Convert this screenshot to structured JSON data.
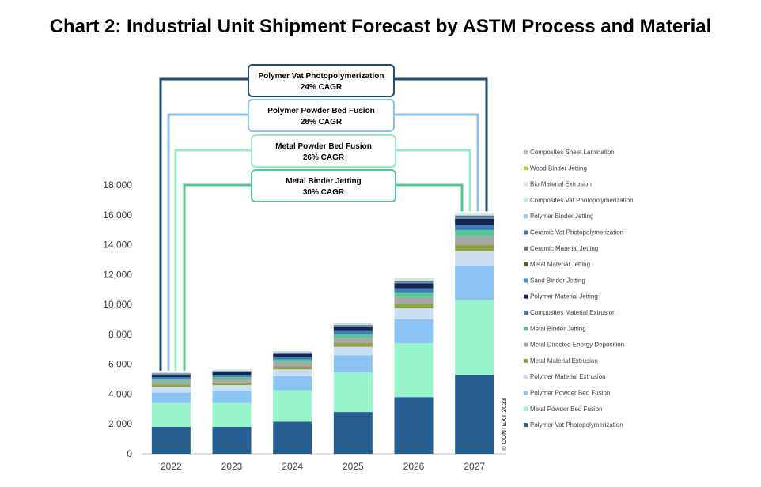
{
  "chart_data": {
    "type": "bar",
    "stacked": true,
    "title": "Chart 2: Industrial Unit Shipment Forecast by ASTM Process and Material",
    "xlabel": "",
    "ylabel": "",
    "categories": [
      "2022",
      "2023",
      "2024",
      "2025",
      "2026",
      "2027"
    ],
    "ylim": [
      0,
      18000
    ],
    "yticks": [
      "0",
      "2,000",
      "4,000",
      "6,000",
      "8,000",
      "10,000",
      "12,000",
      "14,000",
      "16,000",
      "18,000"
    ],
    "ytick_values": [
      0,
      2000,
      4000,
      6000,
      8000,
      10000,
      12000,
      14000,
      16000,
      18000
    ],
    "grid": false,
    "legend_position": "right",
    "series": [
      {
        "name": "Polymer Vat Photopolymerization",
        "color": "#255e91",
        "values": [
          1800,
          1800,
          2150,
          2800,
          3800,
          5300
        ]
      },
      {
        "name": "Metal Powder Bed Fusion",
        "color": "#98f5cb",
        "values": [
          1600,
          1600,
          2100,
          2650,
          3600,
          5000
        ]
      },
      {
        "name": "Polymer Powder Bed Fusion",
        "color": "#8ac4f4",
        "values": [
          700,
          800,
          950,
          1150,
          1600,
          2300
        ]
      },
      {
        "name": "Polymer Material Extrusion",
        "color": "#c9dcf0",
        "values": [
          380,
          400,
          450,
          560,
          750,
          1000
        ]
      },
      {
        "name": "Metal Material Extrusion",
        "color": "#8ea442",
        "values": [
          170,
          170,
          200,
          250,
          300,
          400
        ]
      },
      {
        "name": "Metal Directed Energy Deposition",
        "color": "#a7a7a7",
        "values": [
          230,
          250,
          300,
          360,
          450,
          580
        ]
      },
      {
        "name": "Metal Binder Jetting",
        "color": "#52c98e",
        "values": [
          110,
          120,
          160,
          230,
          310,
          400
        ]
      },
      {
        "name": "Composites Material Extrusion",
        "color": "#3f7cbe",
        "values": [
          140,
          150,
          180,
          220,
          270,
          340
        ]
      },
      {
        "name": "Polymer Material Jetting",
        "color": "#14264f",
        "values": [
          160,
          170,
          200,
          260,
          330,
          420
        ]
      },
      {
        "name": "Sand Binder Jetting",
        "color": "#4a90cf",
        "values": [
          30,
          30,
          30,
          40,
          40,
          50
        ]
      },
      {
        "name": "Metal Material Jetting",
        "color": "#4c6122",
        "values": [
          10,
          10,
          10,
          20,
          20,
          30
        ]
      },
      {
        "name": "Ceramic Material Jetting",
        "color": "#707070",
        "values": [
          20,
          20,
          20,
          30,
          40,
          50
        ]
      },
      {
        "name": "Ceramic Vat Photopolymerization",
        "color": "#3d73b3",
        "values": [
          30,
          30,
          40,
          50,
          60,
          70
        ]
      },
      {
        "name": "Polymer Binder Jetting",
        "color": "#9ec9e8",
        "values": [
          20,
          20,
          20,
          30,
          40,
          50
        ]
      },
      {
        "name": "Composites Vat Photopolymerization",
        "color": "#c3f0dd",
        "values": [
          20,
          20,
          20,
          30,
          40,
          50
        ]
      },
      {
        "name": "Bio Material Extrusion",
        "color": "#d7e6f5",
        "values": [
          20,
          20,
          20,
          30,
          40,
          50
        ]
      },
      {
        "name": "Wood Binder Jetting",
        "color": "#b5d142",
        "values": [
          10,
          10,
          10,
          10,
          20,
          20
        ]
      },
      {
        "name": "Composites Sheet Lamination",
        "color": "#b7b7b7",
        "values": [
          10,
          10,
          10,
          10,
          20,
          20
        ]
      }
    ],
    "callouts": [
      {
        "title": "Polymer Vat Photopolymerization",
        "cagr": "24% CAGR",
        "color": "#1f4e79"
      },
      {
        "title": "Polymer Powder Bed Fusion",
        "cagr": "28% CAGR",
        "color": "#8ec3e8"
      },
      {
        "title": "Metal Powder Bed Fusion",
        "cagr": "26% CAGR",
        "color": "#9ee8c6"
      },
      {
        "title": "Metal Binder Jetting",
        "cagr": "30% CAGR",
        "color": "#52c98e"
      }
    ],
    "copyright": "© CONTEXT 2023"
  }
}
